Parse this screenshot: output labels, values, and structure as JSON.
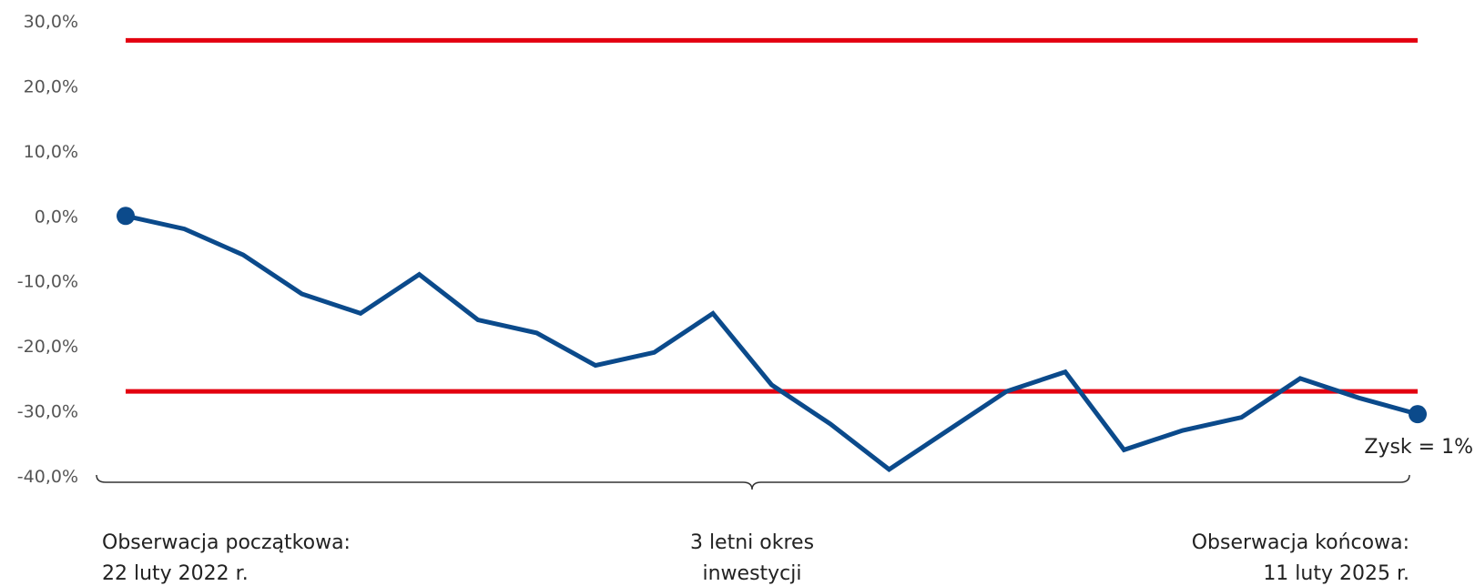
{
  "chart_data": {
    "type": "line",
    "title": "",
    "xlabel": "",
    "ylabel": "",
    "ylim": [
      -40,
      30
    ],
    "yticks": [
      "30,0%",
      "20,0%",
      "10,0%",
      "0,0%",
      "-10,0%",
      "-20,0%",
      "-30,0%",
      "-40,0%"
    ],
    "ytick_values": [
      30,
      20,
      10,
      0,
      -10,
      -20,
      -30,
      -40
    ],
    "grid": false,
    "legend": "none",
    "x": [
      0,
      1,
      2,
      3,
      4,
      5,
      6,
      7,
      8,
      9,
      10,
      11,
      12,
      13,
      14,
      15,
      16,
      17,
      18,
      19,
      20,
      21,
      22
    ],
    "series": [
      {
        "name": "",
        "color": "#0b4a8b",
        "values": [
          0,
          -2,
          -6,
          -12,
          -15,
          -9,
          -16,
          -18,
          -23,
          -21,
          -15,
          -26,
          -32,
          -39,
          -33,
          -27,
          -24,
          -36,
          -33,
          -31,
          -25,
          -28,
          -30.5
        ]
      }
    ],
    "thresholds": [
      {
        "value": 27,
        "color": "#e3000f"
      },
      {
        "value": -27,
        "color": "#e3000f"
      }
    ],
    "annotations": {
      "end_label": "Zysk = 1%",
      "start_observation": [
        "Obserwacja początkowa:",
        "22 luty 2022 r."
      ],
      "period": [
        "3 letni okres",
        "inwestycji"
      ],
      "end_observation": [
        "Obserwacja końcowa:",
        "11 luty 2025 r."
      ]
    }
  }
}
